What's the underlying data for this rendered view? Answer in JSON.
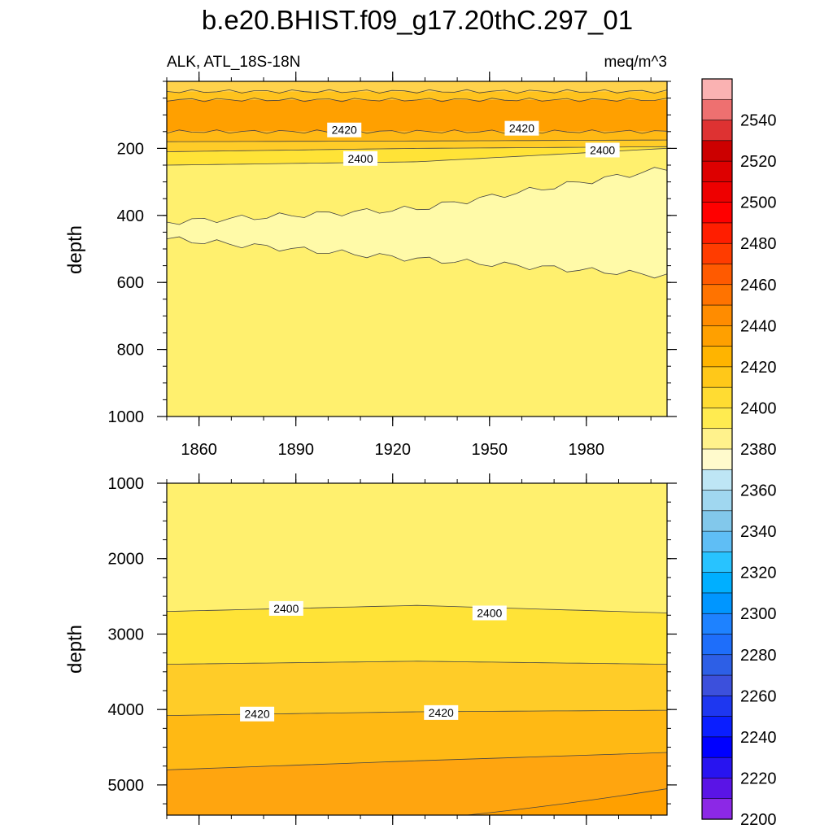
{
  "chart_data": {
    "type": "heatmap",
    "title": "b.e20.BHIST.f09_g17.20thC.297_01",
    "left_string": "ALK, ATL_18S-18N",
    "right_string": "meq/m^3",
    "panels": [
      {
        "name": "upper",
        "ylabel": "depth",
        "ylim": [
          0,
          1000
        ],
        "yticks": [
          200,
          400,
          600,
          800,
          1000
        ],
        "ytick_labels": [
          "200",
          "400",
          "600",
          "800",
          "1000"
        ],
        "xlim": [
          1850,
          2005
        ],
        "xticks": [
          1860,
          1890,
          1920,
          1950,
          1980
        ],
        "xtick_labels": [
          "1860",
          "1890",
          "1920",
          "1950",
          "1980"
        ],
        "bands": [
          {
            "lower_depth": [
              30,
              30,
              30
            ],
            "upper_depth": [
              0,
              0,
              0
            ],
            "value": 2410
          },
          {
            "lower_depth": [
              55,
              55,
              55
            ],
            "upper_depth": [
              30,
              30,
              30
            ],
            "value": 2420
          },
          {
            "lower_depth": [
              150,
              150,
              150
            ],
            "upper_depth": [
              55,
              55,
              55
            ],
            "value": 2440
          },
          {
            "lower_depth": [
              180,
              178,
              175
            ],
            "upper_depth": [
              150,
              150,
              150
            ],
            "value": 2425
          },
          {
            "lower_depth": [
              210,
              200,
              195
            ],
            "upper_depth": [
              180,
              178,
              175
            ],
            "value": 2415
          },
          {
            "lower_depth": [
              250,
              240,
              200
            ],
            "upper_depth": [
              210,
              200,
              195
            ],
            "value": 2405
          },
          {
            "lower_depth": [
              1000,
              1000,
              1000
            ],
            "upper_depth": [
              250,
              240,
              200
            ],
            "value": 2395
          }
        ],
        "low_region": {
          "value": 2385,
          "top_depth": [
            420,
            380,
            260
          ],
          "bottom_depth": [
            470,
            530,
            580
          ]
        },
        "contour_labels": [
          {
            "text": "2420",
            "x": 1905,
            "depth": 145
          },
          {
            "text": "2420",
            "x": 1960,
            "depth": 140
          },
          {
            "text": "2400",
            "x": 1910,
            "depth": 230
          },
          {
            "text": "2400",
            "x": 1985,
            "depth": 205
          }
        ]
      },
      {
        "name": "lower",
        "ylabel": "depth",
        "ylim": [
          1000,
          5400
        ],
        "yticks": [
          1000,
          2000,
          3000,
          4000,
          5000
        ],
        "ytick_labels": [
          "1000",
          "2000",
          "3000",
          "4000",
          "5000"
        ],
        "xlim": [
          1850,
          2005
        ],
        "xticks": [
          1860,
          1890,
          1920,
          1950,
          1980
        ],
        "xtick_labels": [],
        "bands": [
          {
            "lower_depth": [
              2700,
              2620,
              2720
            ],
            "upper_depth": [
              1000,
              1000,
              1000
            ],
            "value": 2395
          },
          {
            "lower_depth": [
              3400,
              3360,
              3400
            ],
            "upper_depth": [
              2700,
              2620,
              2720
            ],
            "value": 2405
          },
          {
            "lower_depth": [
              4080,
              4030,
              4010
            ],
            "upper_depth": [
              3400,
              3360,
              3400
            ],
            "value": 2415
          },
          {
            "lower_depth": [
              4800,
              4680,
              4570
            ],
            "upper_depth": [
              4080,
              4030,
              4010
            ],
            "value": 2425
          },
          {
            "lower_depth": [
              5400,
              5400,
              5400
            ],
            "upper_depth": [
              4800,
              4680,
              4570
            ],
            "value": 2435
          }
        ],
        "deep_region": {
          "value": 2440,
          "x_start": 1943,
          "end_depth": 5050
        },
        "contour_labels": [
          {
            "text": "2400",
            "x": 1887,
            "depth": 2660
          },
          {
            "text": "2400",
            "x": 1950,
            "depth": 2720
          },
          {
            "text": "2420",
            "x": 1878,
            "depth": 4060
          },
          {
            "text": "2420",
            "x": 1935,
            "depth": 4040
          }
        ]
      }
    ],
    "colorbar": {
      "labels": [
        "2540",
        "2520",
        "2500",
        "2480",
        "2460",
        "2440",
        "2420",
        "2400",
        "2380",
        "2360",
        "2340",
        "2320",
        "2300",
        "2280",
        "2260",
        "2240",
        "2220",
        "2200"
      ],
      "colors_top_to_bottom": [
        "#FAB2B2",
        "#EE7070",
        "#DE3232",
        "#CC0000",
        "#DD0000",
        "#EE0000",
        "#FF0000",
        "#FF1E00",
        "#FF3C00",
        "#FF5A00",
        "#FF7300",
        "#FF8C00",
        "#FFA000",
        "#FFB400",
        "#FFC819",
        "#FFDC32",
        "#FFEB50",
        "#FFF28C",
        "#FFFACC",
        "#BEE6F5",
        "#A0D7F0",
        "#82C8EB",
        "#5FBEF5",
        "#28C3FF",
        "#00AFFF",
        "#0096FF",
        "#1E82FF",
        "#1E6EFA",
        "#2D5FE6",
        "#3C50DC",
        "#1E37F0",
        "#0A1EFF",
        "#0000FF",
        "#2814F0",
        "#5A14E6",
        "#8C28E6"
      ]
    }
  },
  "palette": {
    "2385": "#FFFAA8",
    "2395": "#FFF06E",
    "2405": "#FFE337",
    "2410": "#FFD24B",
    "2415": "#FFCC28",
    "2420": "#FFC31E",
    "2425": "#FFB914",
    "2435": "#FFA50F",
    "2440": "#FFA000"
  }
}
